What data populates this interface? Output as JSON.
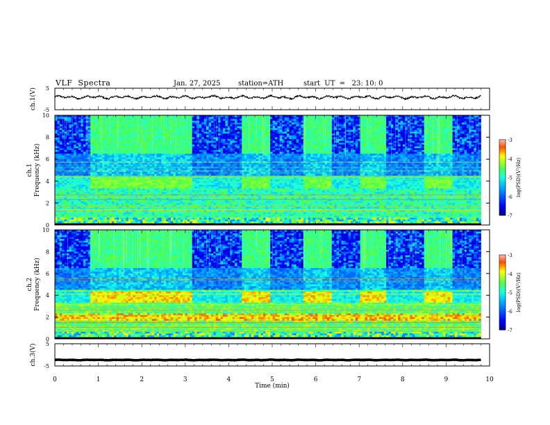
{
  "header": {
    "title": "VLF  Spectra",
    "date": "Jan. 27, 2025",
    "station": "station=ATH",
    "start": "start  UT  =   23: 10: 0"
  },
  "chart_data": [
    {
      "type": "line",
      "name": "ch1-waveform",
      "ylabel": "ch.1(V)",
      "ylim": [
        -5,
        5
      ],
      "yticks": [
        "5",
        "-5"
      ],
      "baseline": 0.8,
      "amplitude": 0.9
    },
    {
      "type": "heatmap",
      "name": "ch1-spectrogram",
      "ylabel": "ch.1\nFrequency (kHz)",
      "ylim": [
        0,
        10
      ],
      "yticks": [
        "0",
        "2",
        "4",
        "6",
        "8",
        "10"
      ],
      "colorbar": {
        "label": "log(PSD)(V²/Hz)",
        "ticks": [
          "-3",
          "-4",
          "-5",
          "-6",
          "-7"
        ],
        "range": [
          -7,
          -3
        ]
      },
      "active_intervals_min": [
        [
          0.8,
          3.15
        ],
        [
          4.3,
          4.95
        ],
        [
          5.7,
          6.35
        ],
        [
          7.0,
          7.6
        ],
        [
          8.5,
          9.15
        ]
      ],
      "quiet_intervals_min": [
        [
          0,
          0.8
        ],
        [
          3.15,
          4.3
        ],
        [
          4.95,
          5.7
        ],
        [
          6.35,
          7.0
        ],
        [
          7.6,
          8.5
        ],
        [
          9.15,
          9.8
        ]
      ]
    },
    {
      "type": "heatmap",
      "name": "ch2-spectrogram",
      "ylabel": "ch.2\nFrequency (kHz)",
      "ylim": [
        0,
        10
      ],
      "yticks": [
        "0",
        "2",
        "4",
        "6",
        "8",
        "10"
      ],
      "colorbar": {
        "label": "log(PSD)(V²/Hz)",
        "ticks": [
          "-3",
          "-4",
          "-5",
          "-6",
          "-7"
        ],
        "range": [
          -7,
          -3
        ]
      },
      "active_intervals_min": [
        [
          0.8,
          3.15
        ],
        [
          4.3,
          4.95
        ],
        [
          5.7,
          6.35
        ],
        [
          7.0,
          7.6
        ],
        [
          8.5,
          9.15
        ]
      ]
    },
    {
      "type": "line",
      "name": "ch3-waveform",
      "ylabel": "ch.3(V)",
      "ylim": [
        -5,
        5
      ],
      "yticks": [
        "5",
        "-5"
      ],
      "baseline": -2.3,
      "amplitude": 0.15
    }
  ],
  "xaxis": {
    "label": "Time  (min)",
    "range": [
      0,
      10
    ],
    "ticks": [
      "0",
      "1",
      "2",
      "3",
      "4",
      "5",
      "6",
      "7",
      "8",
      "9",
      "10"
    ],
    "data_end_min": 9.8
  }
}
